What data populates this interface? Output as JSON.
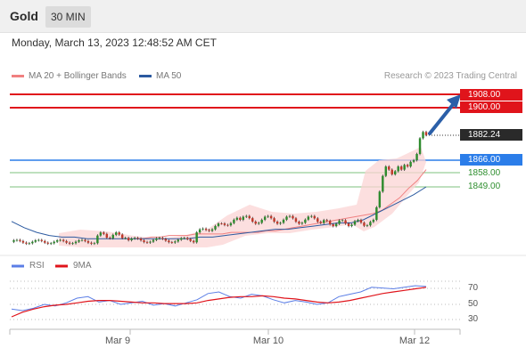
{
  "header": {
    "title": "Gold",
    "timeframe": "30 MIN"
  },
  "timestamp": "Monday, March 13, 2023 12:48:52 AM CET",
  "legend": {
    "ma20_label": "MA 20 + Bollinger Bands",
    "ma50_label": "MA 50",
    "credit": "Research © 2023 Trading Central"
  },
  "levels": {
    "resistance_2": "1908.00",
    "resistance_1": "1900.00",
    "last_price": "1882.24",
    "support_1": "1866.00",
    "support_2": "1858.00",
    "support_3": "1849.00"
  },
  "rsi_legend": {
    "rsi_label": "RSI",
    "ma_label": "9MA"
  },
  "colors": {
    "resistance": "#e0141b",
    "pivot": "#2b7de9",
    "support": "#2f8f2f",
    "ma20": "#f08080",
    "ma50": "#2c5aa0",
    "rsi": "#5b7ee6",
    "rsi_ma": "#e0141b",
    "arrow": "#2b5fa8"
  },
  "chart_data": [
    {
      "type": "line",
      "series": [
        {
          "name": "MA 20 + Bollinger Bands",
          "values": [
            1816,
            1816,
            1817,
            1817,
            1818,
            1818,
            1818,
            1819,
            1819,
            1819,
            1819,
            1820,
            1820,
            1820,
            1820,
            1821,
            1821,
            1822,
            1823,
            1824,
            1825,
            1826,
            1827,
            1828,
            1829,
            1830,
            1831,
            1832,
            1834,
            1838,
            1842,
            1848,
            1853,
            1860
          ]
        },
        {
          "name": "MA 50",
          "values": [
            1827,
            1823,
            1820,
            1818,
            1817,
            1817,
            1816,
            1816,
            1816,
            1816,
            1816,
            1816,
            1816,
            1816,
            1816,
            1817,
            1817,
            1818,
            1819,
            1820,
            1821,
            1822,
            1822,
            1823,
            1824,
            1825,
            1826,
            1826,
            1828,
            1832,
            1836,
            1840,
            1844,
            1849
          ]
        }
      ],
      "x_ticks": [
        "Mar 9",
        "Mar 10",
        "Mar 12"
      ],
      "horizontal_levels": [
        1908.0,
        1900.0,
        1882.24,
        1866.0,
        1858.0,
        1849.0
      ],
      "ylim": [
        1812,
        1913
      ],
      "grid": false
    },
    {
      "type": "line",
      "series": [
        {
          "name": "RSI",
          "values": [
            44,
            42,
            45,
            50,
            48,
            52,
            58,
            60,
            53,
            55,
            50,
            52,
            54,
            49,
            51,
            48,
            52,
            56,
            64,
            66,
            60,
            58,
            63,
            61,
            56,
            52,
            55,
            53,
            50,
            52,
            60,
            63,
            66,
            72,
            71,
            70,
            72,
            74,
            73
          ]
        },
        {
          "name": "9MA",
          "values": [
            34,
            40,
            44,
            47,
            49,
            50,
            52,
            54,
            55,
            55,
            54,
            53,
            52,
            52,
            51,
            51,
            51,
            52,
            55,
            57,
            59,
            60,
            60,
            61,
            60,
            58,
            57,
            55,
            53,
            52,
            53,
            55,
            58,
            61,
            64,
            66,
            68,
            70,
            72
          ]
        }
      ],
      "y_ticks": [
        70,
        50,
        30
      ],
      "ylim": [
        20,
        85
      ]
    }
  ]
}
